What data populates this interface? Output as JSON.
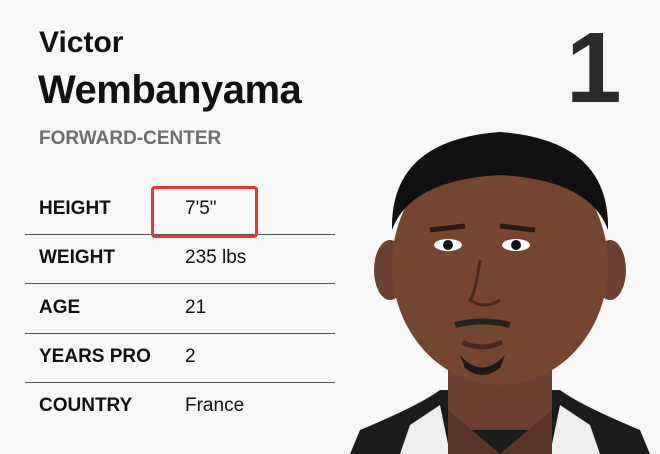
{
  "player": {
    "first_name": "Victor",
    "last_name": "Wembanyama",
    "position": "FORWARD-CENTER",
    "number": "1"
  },
  "stats": [
    {
      "label": "HEIGHT",
      "value": "7'5\""
    },
    {
      "label": "WEIGHT",
      "value": "235 lbs"
    },
    {
      "label": "AGE",
      "value": "21"
    },
    {
      "label": "YEARS PRO",
      "value": "2"
    },
    {
      "label": "COUNTRY",
      "value": "France"
    }
  ],
  "highlight": {
    "field": "HEIGHT",
    "color": "#e8343a"
  }
}
